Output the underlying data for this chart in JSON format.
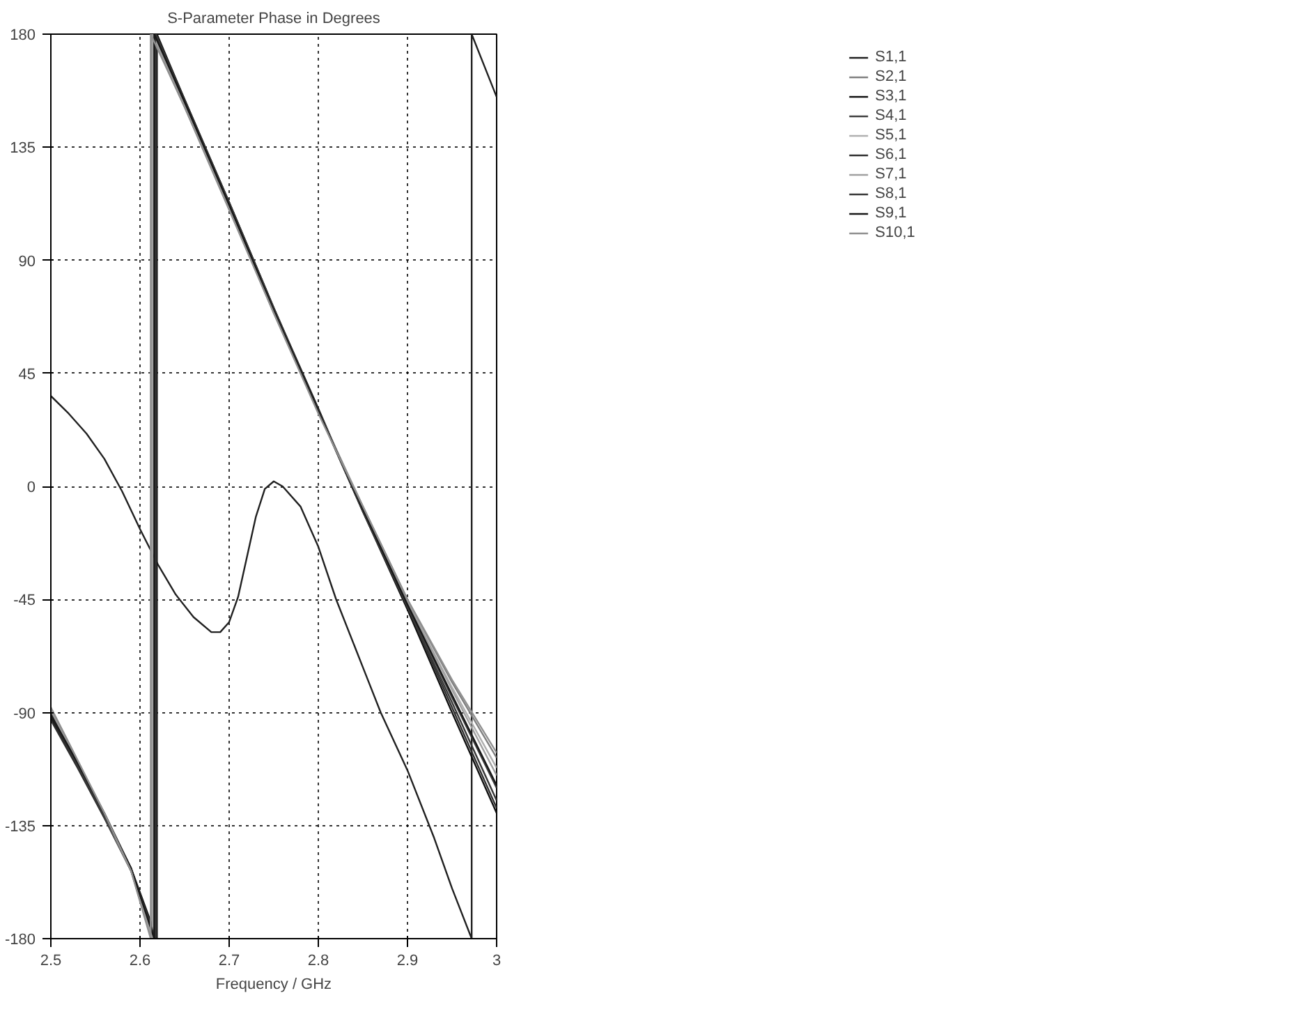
{
  "chart_data": {
    "type": "line",
    "title": "S-Parameter Phase in Degrees",
    "xlabel": "Frequency / GHz",
    "xlim": [
      2.5,
      3
    ],
    "ylim": [
      -180,
      180
    ],
    "xticks": [
      2.5,
      2.6,
      2.7,
      2.8,
      2.9,
      3
    ],
    "yticks": [
      -180,
      -135,
      -90,
      -45,
      0,
      45,
      90,
      135,
      180
    ],
    "grid": true,
    "legend": "right",
    "line_style": "solid",
    "series": [
      {
        "name": "S1,1",
        "color": "#202020",
        "x": [
          2.5,
          2.52,
          2.54,
          2.56,
          2.58,
          2.6,
          2.62,
          2.64,
          2.66,
          2.68,
          2.69,
          2.7,
          2.71,
          2.72,
          2.73,
          2.74,
          2.75,
          2.76,
          2.78,
          2.8,
          2.82,
          2.85,
          2.87,
          2.9,
          2.93,
          2.95,
          2.972,
          2.972,
          3.0
        ],
        "values": [
          36,
          29,
          21,
          11,
          -2,
          -17,
          -31,
          -43,
          -52,
          -58,
          -58,
          -54,
          -44,
          -28,
          -12,
          -1,
          2,
          0,
          -8,
          -24,
          -45,
          -72,
          -90,
          -113,
          -140,
          -160,
          -180,
          180,
          155
        ]
      },
      {
        "name": "S2,1",
        "color": "#808080",
        "x": [
          2.5,
          2.53,
          2.56,
          2.59,
          2.613,
          2.613,
          2.65,
          2.7,
          2.75,
          2.8,
          2.85,
          2.9,
          2.95,
          3.0
        ],
        "values": [
          -89,
          -110,
          -131,
          -153,
          -180,
          180,
          151,
          111,
          69,
          30,
          -8,
          -45,
          -78,
          -108
        ]
      },
      {
        "name": "S3,1",
        "color": "#101010",
        "x": [
          2.5,
          2.53,
          2.56,
          2.59,
          2.619,
          2.619,
          2.65,
          2.7,
          2.75,
          2.8,
          2.85,
          2.9,
          2.95,
          3.0
        ],
        "values": [
          -92,
          -111,
          -131,
          -152,
          -180,
          180,
          154,
          113,
          71,
          31,
          -10,
          -49,
          -90,
          -130
        ]
      },
      {
        "name": "S4,1",
        "color": "#404040",
        "x": [
          2.5,
          2.53,
          2.56,
          2.59,
          2.616,
          2.616,
          2.65,
          2.7,
          2.75,
          2.8,
          2.85,
          2.9,
          2.95,
          3.0
        ],
        "values": [
          -90,
          -110,
          -131,
          -153,
          -180,
          180,
          153,
          112,
          70,
          30,
          -9,
          -47,
          -84,
          -120
        ]
      },
      {
        "name": "S5,1",
        "color": "#b0b0b0",
        "x": [
          2.5,
          2.53,
          2.56,
          2.59,
          2.614,
          2.614,
          2.65,
          2.7,
          2.75,
          2.8,
          2.85,
          2.9,
          2.95,
          3.0
        ],
        "values": [
          -88,
          -109,
          -130,
          -153,
          -180,
          180,
          152,
          111,
          70,
          30,
          -8,
          -46,
          -80,
          -112
        ]
      },
      {
        "name": "S6,1",
        "color": "#303030",
        "x": [
          2.5,
          2.53,
          2.56,
          2.59,
          2.618,
          2.618,
          2.65,
          2.7,
          2.75,
          2.8,
          2.85,
          2.9,
          2.95,
          3.0
        ],
        "values": [
          -93,
          -112,
          -132,
          -153,
          -180,
          180,
          154,
          113,
          71,
          30,
          -10,
          -48,
          -88,
          -128
        ]
      },
      {
        "name": "S7,1",
        "color": "#a0a0a0",
        "x": [
          2.5,
          2.53,
          2.56,
          2.59,
          2.614,
          2.614,
          2.65,
          2.7,
          2.75,
          2.8,
          2.85,
          2.9,
          2.95,
          3.0
        ],
        "values": [
          -89,
          -110,
          -131,
          -153,
          -180,
          180,
          152,
          112,
          70,
          30,
          -9,
          -46,
          -81,
          -115
        ]
      },
      {
        "name": "S8,1",
        "color": "#383838",
        "x": [
          2.5,
          2.53,
          2.56,
          2.59,
          2.617,
          2.617,
          2.65,
          2.7,
          2.75,
          2.8,
          2.85,
          2.9,
          2.95,
          3.0
        ],
        "values": [
          -91,
          -111,
          -131,
          -152,
          -180,
          180,
          153,
          113,
          71,
          30,
          -10,
          -48,
          -86,
          -125
        ]
      },
      {
        "name": "S9,1",
        "color": "#181818",
        "x": [
          2.5,
          2.53,
          2.56,
          2.59,
          2.616,
          2.616,
          2.65,
          2.7,
          2.75,
          2.8,
          2.85,
          2.9,
          2.95,
          3.0
        ],
        "values": [
          -91,
          -110,
          -130,
          -152,
          -180,
          180,
          153,
          112,
          70,
          30,
          -9,
          -47,
          -83,
          -119
        ]
      },
      {
        "name": "S10,1",
        "color": "#909090",
        "x": [
          2.5,
          2.53,
          2.56,
          2.59,
          2.612,
          2.612,
          2.65,
          2.7,
          2.75,
          2.8,
          2.85,
          2.9,
          2.95,
          3.0
        ],
        "values": [
          -88,
          -109,
          -130,
          -153,
          -180,
          180,
          151,
          110,
          69,
          29,
          -8,
          -45,
          -77,
          -106
        ]
      }
    ]
  }
}
